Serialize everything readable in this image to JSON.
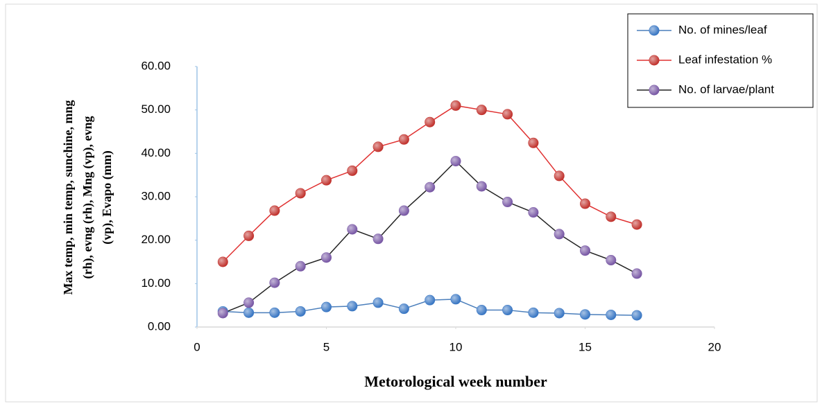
{
  "chart_data": {
    "type": "line",
    "x_label": "Metorological week number",
    "y_label_lines": [
      "Max temp, min temp, sunchine, mng",
      "(rh), evng (rh), Mng (vp), evng",
      "(vp), Evapo (mm)"
    ],
    "x": [
      1,
      2,
      3,
      4,
      5,
      6,
      7,
      8,
      9,
      10,
      11,
      12,
      13,
      14,
      15,
      16,
      17
    ],
    "series": [
      {
        "name": "No. of mines/leaf",
        "color": "#4a7ebb",
        "marker_color": "#3b78c4",
        "values": [
          3.6,
          3.3,
          3.3,
          3.6,
          4.6,
          4.8,
          5.6,
          4.2,
          6.2,
          6.4,
          3.9,
          3.9,
          3.3,
          3.2,
          2.9,
          2.8,
          2.7
        ]
      },
      {
        "name": "Leaf infestation %",
        "color": "#e03030",
        "marker_color": "#c23530",
        "values": [
          15.0,
          21.0,
          26.8,
          30.8,
          33.8,
          36.0,
          41.5,
          43.2,
          47.2,
          51.0,
          50.0,
          49.0,
          42.4,
          34.8,
          28.4,
          25.4,
          23.6
        ]
      },
      {
        "name": "No. of larvae/plant",
        "color": "#222222",
        "marker_color": "#7a5aa6",
        "values": [
          3.2,
          5.6,
          10.2,
          14.0,
          16.0,
          22.5,
          20.3,
          26.8,
          32.2,
          38.2,
          32.4,
          28.8,
          26.4,
          21.4,
          17.6,
          15.4,
          12.3
        ]
      }
    ],
    "xlim": [
      0,
      20
    ],
    "xticks": [
      0,
      5,
      10,
      15,
      20
    ],
    "ylim": [
      0,
      60
    ],
    "yticks": [
      {
        "value": 0,
        "label": "0.00"
      },
      {
        "value": 10,
        "label": "10.00"
      },
      {
        "value": 20,
        "label": "20.00"
      },
      {
        "value": 30,
        "label": "30.00"
      },
      {
        "value": 40,
        "label": "40.00"
      },
      {
        "value": 50,
        "label": "50.00"
      },
      {
        "value": 60,
        "label": "60.00"
      }
    ],
    "grid": false,
    "legend": "top-right"
  }
}
